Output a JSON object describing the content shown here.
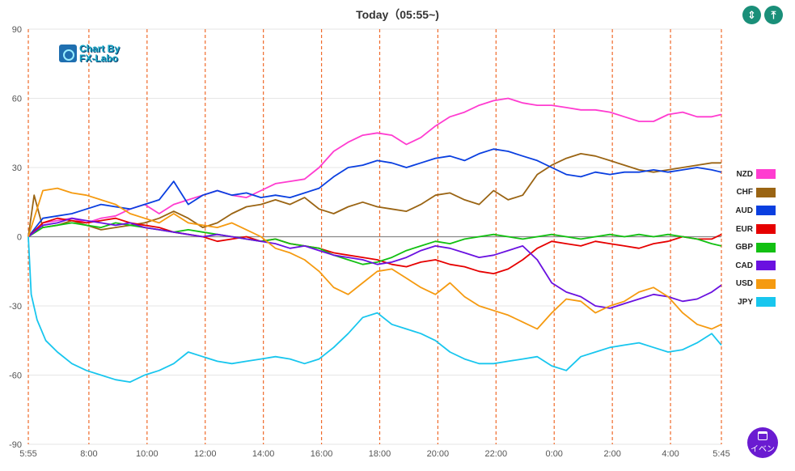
{
  "header": {
    "title": "Today（05:55~)"
  },
  "toolbar": {
    "zoom_in_icon": "expand-vertical-icon",
    "zoom_out_icon": "collapse-vertical-icon"
  },
  "event_button": {
    "label": "イベン",
    "icon": "calendar-icon"
  },
  "watermark": {
    "line1": "Chart By",
    "line2": "FX-Labo"
  },
  "chart_data": {
    "type": "line",
    "title": "Today（05:55~)",
    "xlabel": "",
    "ylabel": "",
    "ylim": [
      -90,
      90
    ],
    "yticks": [
      90,
      60,
      30,
      0,
      -30,
      -60,
      -90
    ],
    "xticks": [
      "5:55",
      "8:00",
      "10:00",
      "12:00",
      "14:00",
      "16:00",
      "18:00",
      "20:00",
      "22:00",
      "0:00",
      "2:00",
      "4:00",
      "5:45"
    ],
    "xtick_hours": [
      0,
      2.0833,
      4.0833,
      6.0833,
      8.0833,
      10.0833,
      12.0833,
      14.0833,
      16.0833,
      18.0833,
      20.0833,
      22.0833,
      23.8333
    ],
    "x_hours_span": [
      0,
      23.8333
    ],
    "grid": true,
    "legend_position": "right",
    "series": [
      {
        "name": "NZD",
        "color": "#ff3cd0",
        "x": [
          0,
          0.5,
          1,
          1.5,
          2,
          2.5,
          3,
          3.5,
          4,
          4.5,
          5,
          5.5,
          6,
          6.5,
          7,
          7.5,
          8,
          8.5,
          9,
          9.5,
          10,
          10.5,
          11,
          11.5,
          12,
          12.5,
          13,
          13.5,
          14,
          14.5,
          15,
          15.5,
          16,
          16.5,
          17,
          17.5,
          18,
          18.5,
          19,
          19.5,
          20,
          20.5,
          21,
          21.5,
          22,
          22.5,
          23,
          23.5,
          23.83
        ],
        "values": [
          0,
          6,
          7,
          8,
          6,
          8,
          9,
          12,
          14,
          10,
          14,
          16,
          18,
          20,
          18,
          17,
          20,
          23,
          24,
          25,
          30,
          37,
          41,
          44,
          45,
          44,
          40,
          43,
          48,
          52,
          54,
          57,
          59,
          60,
          58,
          57,
          57,
          56,
          55,
          55,
          54,
          52,
          50,
          50,
          53,
          54,
          52,
          52,
          53
        ]
      },
      {
        "name": "CHF",
        "color": "#9a6413",
        "x": [
          0,
          0.2,
          0.5,
          1,
          1.5,
          2,
          2.5,
          3,
          3.5,
          4,
          4.5,
          5,
          5.5,
          6,
          6.5,
          7,
          7.5,
          8,
          8.5,
          9,
          9.5,
          10,
          10.5,
          11,
          11.5,
          12,
          12.5,
          13,
          13.5,
          14,
          14.5,
          15,
          15.5,
          16,
          16.5,
          17,
          17.5,
          18,
          18.5,
          19,
          19.5,
          20,
          20.5,
          21,
          21.5,
          22,
          22.5,
          23,
          23.5,
          23.83
        ],
        "values": [
          0,
          18,
          4,
          5,
          7,
          5,
          3,
          4,
          5,
          6,
          8,
          11,
          8,
          4,
          6,
          10,
          13,
          14,
          16,
          14,
          17,
          12,
          10,
          13,
          15,
          13,
          12,
          11,
          14,
          18,
          19,
          16,
          14,
          20,
          16,
          18,
          27,
          31,
          34,
          36,
          35,
          33,
          31,
          29,
          28,
          29,
          30,
          31,
          32,
          32
        ]
      },
      {
        "name": "AUD",
        "color": "#0a3fe0",
        "x": [
          0,
          0.5,
          1,
          1.5,
          2,
          2.5,
          3,
          3.5,
          4,
          4.5,
          5,
          5.5,
          6,
          6.5,
          7,
          7.5,
          8,
          8.5,
          9,
          9.5,
          10,
          10.5,
          11,
          11.5,
          12,
          12.5,
          13,
          13.5,
          14,
          14.5,
          15,
          15.5,
          16,
          16.5,
          17,
          17.5,
          18,
          18.5,
          19,
          19.5,
          20,
          20.5,
          21,
          21.5,
          22,
          22.5,
          23,
          23.5,
          23.83
        ],
        "values": [
          0,
          8,
          9,
          10,
          12,
          14,
          13,
          12,
          14,
          16,
          24,
          14,
          18,
          20,
          18,
          19,
          17,
          18,
          17,
          19,
          21,
          26,
          30,
          31,
          33,
          32,
          30,
          32,
          34,
          35,
          33,
          36,
          38,
          37,
          35,
          33,
          30,
          27,
          26,
          28,
          27,
          28,
          28,
          29,
          28,
          29,
          30,
          29,
          28
        ]
      },
      {
        "name": "EUR",
        "color": "#e60000",
        "x": [
          0,
          0.5,
          1,
          1.5,
          2,
          2.5,
          3,
          3.5,
          4,
          4.5,
          5,
          5.5,
          6,
          6.5,
          7,
          7.5,
          8,
          8.5,
          9,
          9.5,
          10,
          10.5,
          11,
          11.5,
          12,
          12.5,
          13,
          13.5,
          14,
          14.5,
          15,
          15.5,
          16,
          16.5,
          17,
          17.5,
          18,
          18.5,
          19,
          19.5,
          20,
          20.5,
          21,
          21.5,
          22,
          22.5,
          23,
          23.5,
          23.83
        ],
        "values": [
          0,
          6,
          8,
          7,
          6,
          7,
          8,
          6,
          5,
          4,
          2,
          1,
          0,
          -2,
          -1,
          0,
          -2,
          -1,
          -3,
          -4,
          -5,
          -7,
          -8,
          -9,
          -10,
          -12,
          -13,
          -11,
          -10,
          -12,
          -13,
          -15,
          -16,
          -14,
          -10,
          -5,
          -2,
          -3,
          -4,
          -2,
          -3,
          -4,
          -5,
          -3,
          -2,
          0,
          -1,
          -1,
          1
        ]
      },
      {
        "name": "GBP",
        "color": "#12c012",
        "x": [
          0,
          0.5,
          1,
          1.5,
          2,
          2.5,
          3,
          3.5,
          4,
          4.5,
          5,
          5.5,
          6,
          6.5,
          7,
          7.5,
          8,
          8.5,
          9,
          9.5,
          10,
          10.5,
          11,
          11.5,
          12,
          12.5,
          13,
          13.5,
          14,
          14.5,
          15,
          15.5,
          16,
          16.5,
          17,
          17.5,
          18,
          18.5,
          19,
          19.5,
          20,
          20.5,
          21,
          21.5,
          22,
          22.5,
          23,
          23.5,
          23.83
        ],
        "values": [
          0,
          4,
          5,
          6,
          5,
          4,
          6,
          5,
          4,
          3,
          2,
          3,
          2,
          1,
          0,
          -1,
          -2,
          -1,
          -3,
          -4,
          -5,
          -8,
          -10,
          -12,
          -11,
          -9,
          -6,
          -4,
          -2,
          -3,
          -1,
          0,
          1,
          0,
          -1,
          0,
          1,
          0,
          -1,
          0,
          1,
          0,
          1,
          0,
          1,
          0,
          -1,
          -3,
          -4
        ]
      },
      {
        "name": "CAD",
        "color": "#6a11e0",
        "x": [
          0,
          0.5,
          1,
          1.5,
          2,
          2.5,
          3,
          3.5,
          4,
          4.5,
          5,
          5.5,
          6,
          6.5,
          7,
          7.5,
          8,
          8.5,
          9,
          9.5,
          10,
          10.5,
          11,
          11.5,
          12,
          12.5,
          13,
          13.5,
          14,
          14.5,
          15,
          15.5,
          16,
          16.5,
          17,
          17.5,
          18,
          18.5,
          19,
          19.5,
          20,
          20.5,
          21,
          21.5,
          22,
          22.5,
          23,
          23.5,
          23.83
        ],
        "values": [
          0,
          5,
          6,
          8,
          7,
          6,
          5,
          6,
          4,
          3,
          2,
          1,
          0,
          1,
          0,
          -1,
          -2,
          -3,
          -5,
          -4,
          -6,
          -8,
          -9,
          -10,
          -12,
          -11,
          -9,
          -6,
          -4,
          -5,
          -7,
          -9,
          -8,
          -6,
          -4,
          -10,
          -20,
          -24,
          -26,
          -30,
          -31,
          -29,
          -27,
          -25,
          -26,
          -28,
          -27,
          -24,
          -21
        ]
      },
      {
        "name": "USD",
        "color": "#f59a10",
        "x": [
          0,
          0.2,
          0.5,
          1,
          1.5,
          2,
          2.5,
          3,
          3.5,
          4,
          4.5,
          5,
          5.5,
          6,
          6.5,
          7,
          7.5,
          8,
          8.5,
          9,
          9.5,
          10,
          10.5,
          11,
          11.5,
          12,
          12.5,
          13,
          13.5,
          14,
          14.5,
          15,
          15.5,
          16,
          16.5,
          17,
          17.5,
          18,
          18.5,
          19,
          19.5,
          20,
          20.5,
          21,
          21.5,
          22,
          22.5,
          23,
          23.5,
          23.83
        ],
        "values": [
          0,
          8,
          20,
          21,
          19,
          18,
          16,
          14,
          10,
          8,
          6,
          10,
          6,
          5,
          4,
          6,
          3,
          0,
          -5,
          -7,
          -10,
          -15,
          -22,
          -25,
          -20,
          -15,
          -14,
          -18,
          -22,
          -25,
          -20,
          -26,
          -30,
          -32,
          -34,
          -37,
          -40,
          -33,
          -27,
          -28,
          -33,
          -30,
          -28,
          -24,
          -22,
          -26,
          -33,
          -38,
          -40,
          -38
        ]
      },
      {
        "name": "JPY",
        "color": "#18c6ee",
        "x": [
          0,
          0.1,
          0.3,
          0.6,
          1,
          1.5,
          2,
          2.5,
          3,
          3.5,
          4,
          4.5,
          5,
          5.5,
          6,
          6.5,
          7,
          7.5,
          8,
          8.5,
          9,
          9.5,
          10,
          10.5,
          11,
          11.5,
          12,
          12.5,
          13,
          13.5,
          14,
          14.5,
          15,
          15.5,
          16,
          16.5,
          17,
          17.5,
          18,
          18.5,
          19,
          19.5,
          20,
          20.5,
          21,
          21.5,
          22,
          22.5,
          23,
          23.5,
          23.83
        ],
        "values": [
          0,
          -25,
          -36,
          -45,
          -50,
          -55,
          -58,
          -60,
          -62,
          -63,
          -60,
          -58,
          -55,
          -50,
          -52,
          -54,
          -55,
          -54,
          -53,
          -52,
          -53,
          -55,
          -53,
          -48,
          -42,
          -35,
          -33,
          -38,
          -40,
          -42,
          -45,
          -50,
          -53,
          -55,
          -55,
          -54,
          -53,
          -52,
          -56,
          -58,
          -52,
          -50,
          -48,
          -47,
          -46,
          -48,
          -50,
          -49,
          -46,
          -42,
          -47
        ]
      }
    ]
  }
}
